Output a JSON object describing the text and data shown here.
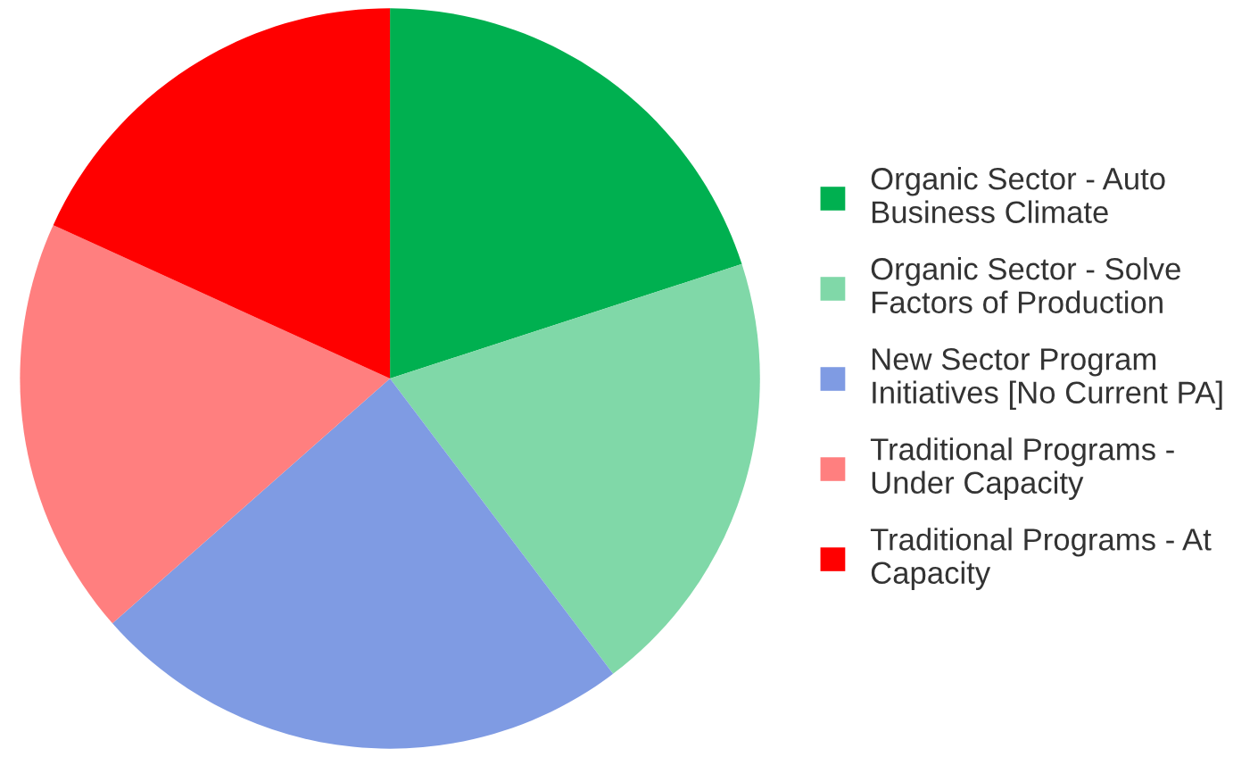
{
  "chart_data": {
    "type": "pie",
    "categories": [
      "Organic Sector - Auto\nBusiness Climate",
      "Organic Sector - Solve\nFactors of Production",
      "New Sector Program\nInitiatives [No Current PA]",
      "Traditional Programs -\nUnder Capacity",
      "Traditional Programs - At\nCapacity"
    ],
    "values": [
      20,
      19.7,
      23.8,
      18.3,
      18.2
    ],
    "colors": [
      "#00b050",
      "#80d8a8",
      "#7f9be3",
      "#ff7f7f",
      "#ff0000"
    ],
    "legend": "right"
  }
}
